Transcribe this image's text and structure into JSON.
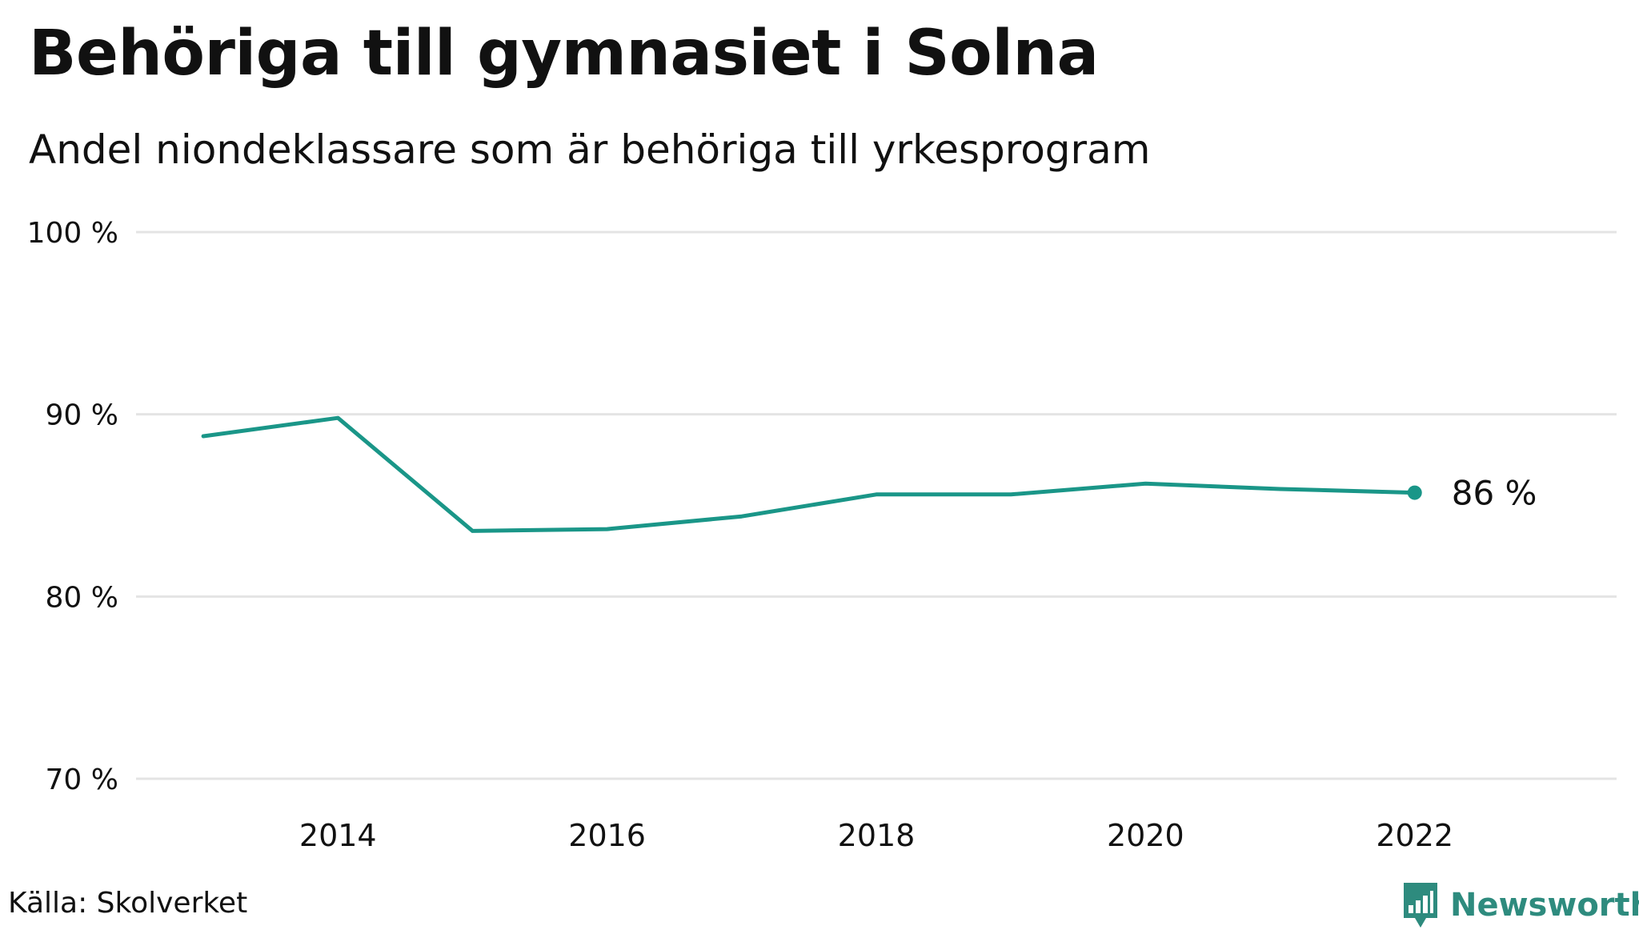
{
  "header": {
    "title": "Behöriga till gymnasiet i Solna",
    "subtitle": "Andel niondeklassare som är behöriga till yrkesprogram"
  },
  "footer": {
    "source": "Källa: Skolverket",
    "brand": "Newsworthy",
    "brand_icon": "bar-chart-speech-bubble-icon"
  },
  "colors": {
    "line": "#1a9688",
    "grid": "#e4e4e4",
    "text": "#111111",
    "brand": "#2e8b7e"
  },
  "chart_data": {
    "type": "line",
    "title": "Behöriga till gymnasiet i Solna",
    "subtitle": "Andel niondeklassare som är behöriga till yrkesprogram",
    "xlabel": "",
    "ylabel": "",
    "x": [
      2013,
      2014,
      2015,
      2016,
      2017,
      2018,
      2019,
      2020,
      2021,
      2022
    ],
    "series": [
      {
        "values": [
          88.8,
          89.8,
          83.6,
          83.7,
          84.4,
          85.6,
          85.6,
          86.2,
          85.9,
          85.7
        ]
      }
    ],
    "ylim": [
      70,
      100
    ],
    "xlim": [
      2012.5,
      2023.5
    ],
    "yticks": [
      100,
      90,
      80,
      70
    ],
    "ytick_labels": [
      "100 %",
      "90 %",
      "80 %",
      "70 %"
    ],
    "xticks": [
      2014,
      2016,
      2018,
      2020,
      2022
    ],
    "xtick_labels": [
      "2014",
      "2016",
      "2018",
      "2020",
      "2022"
    ],
    "end_label": "86  %",
    "grid": true,
    "legend": "none"
  }
}
